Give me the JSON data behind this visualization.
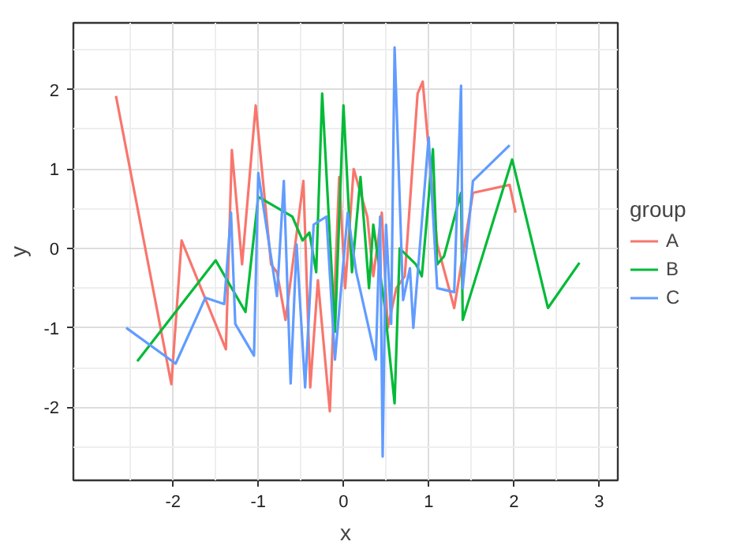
{
  "chart_data": {
    "type": "line",
    "xlabel": "x",
    "ylabel": "y",
    "legend_title": "group",
    "legend": "right",
    "grid": true,
    "xlim": [
      -3.17,
      3.22
    ],
    "ylim": [
      -2.92,
      2.84
    ],
    "xticks": [
      -2,
      -1,
      0,
      1,
      2,
      3
    ],
    "yticks": [
      -2,
      -1,
      0,
      1,
      2
    ],
    "series": [
      {
        "name": "A",
        "color": "#f8766d",
        "x": [
          -2.67,
          -2.02,
          -1.9,
          -1.38,
          -1.31,
          -1.19,
          -1.03,
          -0.85,
          -0.78,
          -0.68,
          -0.47,
          -0.39,
          -0.3,
          -0.16,
          -0.05,
          0.02,
          0.12,
          0.28,
          0.35,
          0.45,
          0.52,
          0.62,
          0.72,
          0.87,
          0.93,
          1.1,
          1.3,
          1.52,
          1.95,
          2.02
        ],
        "values": [
          1.92,
          -1.71,
          0.1,
          -1.27,
          1.24,
          -0.2,
          1.8,
          -0.2,
          -0.3,
          -0.9,
          0.85,
          -1.75,
          -0.4,
          -2.05,
          0.9,
          -0.5,
          1.0,
          0.4,
          -0.35,
          0.45,
          -1.0,
          -0.5,
          -0.35,
          1.95,
          2.1,
          0.05,
          -0.75,
          0.7,
          0.8,
          0.45
        ]
      },
      {
        "name": "B",
        "color": "#00ba38",
        "x": [
          -2.42,
          -1.5,
          -1.15,
          -1.0,
          -0.6,
          -0.48,
          -0.4,
          -0.32,
          -0.25,
          -0.1,
          0.0,
          0.1,
          0.2,
          0.3,
          0.35,
          0.48,
          0.6,
          0.66,
          0.85,
          0.92,
          1.05,
          1.1,
          1.18,
          1.38,
          1.4,
          1.98,
          2.4,
          2.77
        ],
        "values": [
          -1.42,
          -0.15,
          -0.8,
          0.65,
          0.4,
          0.1,
          0.2,
          -0.3,
          1.95,
          -1.05,
          1.8,
          -0.3,
          0.9,
          -0.5,
          0.3,
          -0.7,
          -1.95,
          0.0,
          -0.2,
          -0.35,
          1.25,
          -0.2,
          -0.1,
          0.7,
          -0.9,
          1.12,
          -0.75,
          -0.18
        ]
      },
      {
        "name": "C",
        "color": "#619cff",
        "x": [
          -2.55,
          -1.97,
          -1.62,
          -1.4,
          -1.32,
          -1.27,
          -1.05,
          -1.0,
          -0.78,
          -0.7,
          -0.62,
          -0.55,
          -0.45,
          -0.35,
          -0.2,
          -0.1,
          0.05,
          0.15,
          0.38,
          0.43,
          0.46,
          0.5,
          0.56,
          0.6,
          0.7,
          0.78,
          0.82,
          1.0,
          1.1,
          1.3,
          1.38,
          1.4,
          1.52,
          1.95
        ],
        "values": [
          -1.0,
          -1.45,
          -0.62,
          -0.7,
          0.45,
          -0.95,
          -1.35,
          0.95,
          -0.6,
          0.85,
          -1.7,
          0.05,
          -1.75,
          0.3,
          0.4,
          -1.4,
          0.45,
          -0.3,
          -1.4,
          0.4,
          -2.62,
          0.3,
          -0.95,
          2.53,
          -0.65,
          -0.25,
          -1.0,
          1.4,
          -0.5,
          -0.55,
          2.05,
          -0.5,
          0.85,
          1.3
        ]
      }
    ]
  }
}
